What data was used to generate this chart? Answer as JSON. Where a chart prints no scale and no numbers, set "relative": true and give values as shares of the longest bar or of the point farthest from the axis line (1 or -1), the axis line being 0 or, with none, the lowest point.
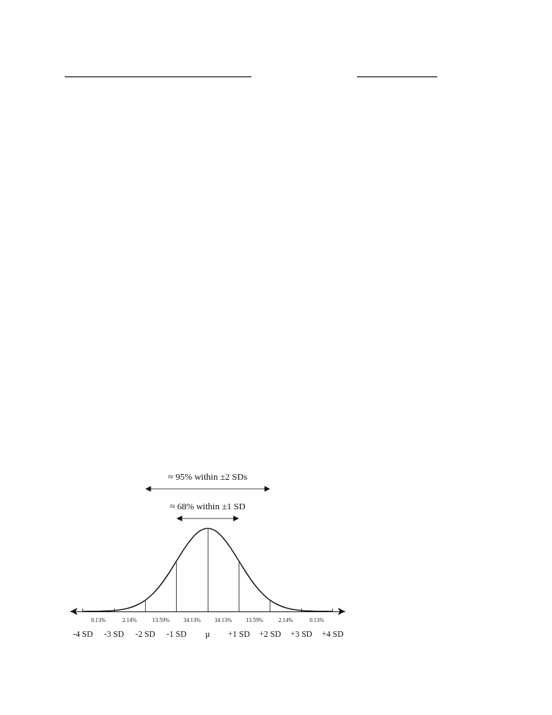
{
  "chart_data": {
    "type": "line",
    "relative": true,
    "color": "#1a1a1a",
    "marker": "none",
    "line_style": "solid",
    "grid": false,
    "x": [
      -4,
      -3.75,
      -3.5,
      -3.25,
      -3,
      -2.75,
      -2.5,
      -2.25,
      -2,
      -1.75,
      -1.5,
      -1.25,
      -1,
      -0.75,
      -0.5,
      -0.25,
      0,
      0.25,
      0.5,
      0.75,
      1,
      1.25,
      1.5,
      1.75,
      2,
      2.25,
      2.5,
      2.75,
      3,
      3.25,
      3.5,
      3.75,
      4
    ],
    "values": [
      0,
      0.001,
      0.002,
      0.005,
      0.011,
      0.023,
      0.044,
      0.08,
      0.135,
      0.216,
      0.325,
      0.458,
      0.607,
      0.755,
      0.882,
      0.969,
      1,
      0.969,
      0.882,
      0.755,
      0.607,
      0.458,
      0.325,
      0.216,
      0.135,
      0.08,
      0.044,
      0.023,
      0.011,
      0.005,
      0.002,
      0.001,
      0
    ],
    "xlim": [
      -4.4,
      4.4
    ],
    "xticks": [
      {
        "value": -4,
        "label": "-4 SD"
      },
      {
        "value": -3,
        "label": "-3 SD"
      },
      {
        "value": -2,
        "label": "-2 SD"
      },
      {
        "value": -1,
        "label": "-1 SD"
      },
      {
        "value": 0,
        "label": "μ"
      },
      {
        "value": 1,
        "label": "+1 SD"
      },
      {
        "value": 2,
        "label": "+2 SD"
      },
      {
        "value": 3,
        "label": "+3 SD"
      },
      {
        "value": 4,
        "label": "+4 SD"
      }
    ],
    "ref_lines": [
      {
        "axis": "x",
        "value": -2
      },
      {
        "axis": "x",
        "value": -1
      },
      {
        "axis": "x",
        "value": 0
      },
      {
        "axis": "x",
        "value": 1
      },
      {
        "axis": "x",
        "value": 2
      }
    ],
    "annotations": [
      "≈ 95% within ±2 SDs",
      "≈ 68% within ±1 SD",
      "0.13%",
      "2.14%",
      "13.59%",
      "34.13%",
      "34.13%",
      "13.59%",
      "2.14%",
      "0.13%"
    ]
  }
}
